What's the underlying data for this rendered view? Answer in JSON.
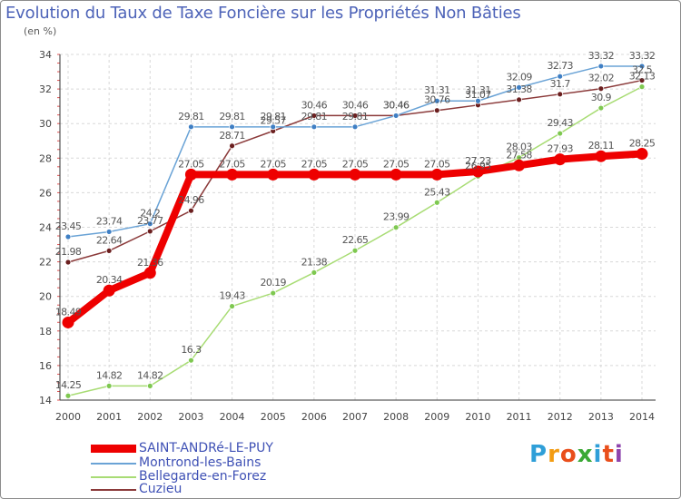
{
  "title": "Evolution du Taux de Taxe Foncière sur les Propriétés Non Bâties",
  "unit_label": "(en %)",
  "logo": {
    "text": [
      "P",
      "r",
      "o",
      "x",
      "i",
      "t",
      "i"
    ],
    "colors": [
      "#2f9fd8",
      "#f39c12",
      "#e94e1b",
      "#3aa935",
      "#2f9fd8",
      "#e94e1b",
      "#8e44ad"
    ]
  },
  "chart_data": {
    "type": "line",
    "title": "Evolution du Taux de Taxe Foncière sur les Propriétés Non Bâties",
    "ylabel": "(en %)",
    "x": [
      "2000",
      "2001",
      "2002",
      "2003",
      "2004",
      "2005",
      "2006",
      "2007",
      "2008",
      "2009",
      "2010",
      "2011",
      "2012",
      "2013",
      "2014"
    ],
    "ylim": [
      14,
      34
    ],
    "yticks": [
      14,
      16,
      18,
      20,
      22,
      24,
      26,
      28,
      30,
      32,
      34
    ],
    "grid": true,
    "series": [
      {
        "name": "SAINT-ANDRé-LE-PUY",
        "color": "#ee0000",
        "emphasis": true,
        "values": [
          18.49,
          20.34,
          21.36,
          27.05,
          27.05,
          27.05,
          27.05,
          27.05,
          27.05,
          27.05,
          27.23,
          27.58,
          27.93,
          28.11,
          28.25
        ],
        "labels": [
          "18.49",
          "20.34",
          "21.36",
          "27.05",
          "27.05",
          "27.05",
          "27.05",
          "27.05",
          "27.05",
          "27.05",
          "27.23",
          "27.58",
          "27.93",
          "28.11",
          "28.25"
        ]
      },
      {
        "name": "Montrond-les-Bains",
        "color": "#6aa3d6",
        "marker": "#3f7fc4",
        "values": [
          23.45,
          23.74,
          24.2,
          29.81,
          29.81,
          29.81,
          29.81,
          29.81,
          30.46,
          31.31,
          31.31,
          32.09,
          32.73,
          33.32,
          33.32
        ],
        "labels": [
          "23.45",
          "23.74",
          "24.2",
          "29.81",
          "29.81",
          "29.81",
          "29.81",
          "29.81",
          "30.46",
          "31.31",
          "31.31",
          "32.09",
          "32.73",
          "33.32",
          "33.32"
        ]
      },
      {
        "name": "Bellegarde-en-Forez",
        "color": "#a8dc74",
        "marker": "#7ec850",
        "values": [
          14.25,
          14.82,
          14.82,
          16.3,
          19.43,
          20.19,
          21.38,
          22.65,
          23.99,
          25.43,
          26.95,
          28.03,
          29.43,
          30.9,
          32.13
        ],
        "labels": [
          "14.25",
          "14.82",
          "14.82",
          "16.3",
          "19.43",
          "20.19",
          "21.38",
          "22.65",
          "23.99",
          "25.43",
          "26.95",
          "28.03",
          "29.43",
          "30.9",
          "32.13"
        ]
      },
      {
        "name": "Cuzieu",
        "color": "#8b3a3a",
        "marker": "#6b1f1f",
        "values": [
          21.98,
          22.64,
          23.77,
          24.96,
          28.71,
          29.57,
          30.46,
          30.46,
          30.46,
          30.76,
          31.07,
          31.38,
          31.7,
          32.02,
          32.5
        ],
        "labels": [
          "21.98",
          "22.64",
          "23.77",
          "24.96",
          "28.71",
          "29.57",
          "30.46",
          "30.46",
          "30.46",
          "30.76",
          "31.07",
          "31.38",
          "31.7",
          "32.02",
          "32.5"
        ]
      }
    ]
  }
}
